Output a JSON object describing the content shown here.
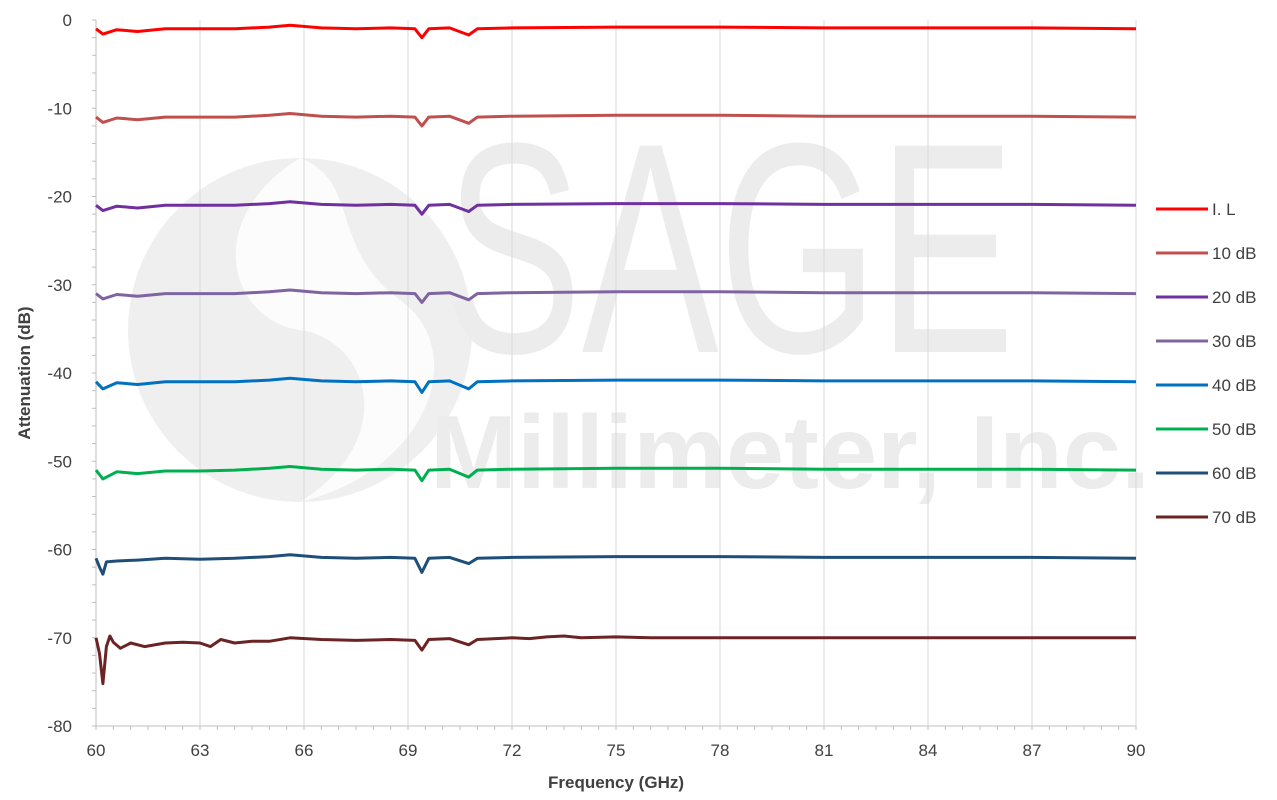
{
  "watermark": {
    "brand": "SAGE",
    "company": "Millimeter, Inc."
  },
  "chart_data": {
    "type": "line",
    "title": "",
    "xlabel": "Frequency (GHz)",
    "ylabel": "Attenuation (dB)",
    "xlim": [
      60,
      90
    ],
    "ylim": [
      -80,
      0
    ],
    "xticks": [
      "60",
      "63",
      "66",
      "69",
      "72",
      "75",
      "78",
      "81",
      "84",
      "87",
      "90"
    ],
    "yticks": [
      "0",
      "-10",
      "-20",
      "-30",
      "-40",
      "-50",
      "-60",
      "-70",
      "-80"
    ],
    "grid": "vertical",
    "legend_position": "right",
    "series": [
      {
        "name": "I. L",
        "color": "#ff0000",
        "x": [
          60,
          60.2,
          60.6,
          61.2,
          62,
          63,
          64,
          65,
          65.6,
          66.5,
          67.5,
          68.5,
          69.2,
          69.4,
          69.6,
          70.2,
          70.75,
          71,
          72,
          75,
          78,
          81,
          84,
          87,
          90
        ],
        "y": [
          -1.0,
          -1.6,
          -1.1,
          -1.3,
          -1.0,
          -1.0,
          -1.0,
          -0.8,
          -0.6,
          -0.9,
          -1.0,
          -0.9,
          -1.0,
          -2.0,
          -1.0,
          -0.9,
          -1.7,
          -1.0,
          -0.9,
          -0.8,
          -0.8,
          -0.9,
          -0.9,
          -0.9,
          -1.0
        ]
      },
      {
        "name": "10 dB",
        "color": "#c0504d",
        "x": [
          60,
          60.2,
          60.6,
          61.2,
          62,
          63,
          64,
          65,
          65.6,
          66.5,
          67.5,
          68.5,
          69.2,
          69.4,
          69.6,
          70.2,
          70.75,
          71,
          72,
          75,
          78,
          81,
          84,
          87,
          90
        ],
        "y": [
          -11.0,
          -11.6,
          -11.1,
          -11.3,
          -11.0,
          -11.0,
          -11.0,
          -10.8,
          -10.6,
          -10.9,
          -11.0,
          -10.9,
          -11.0,
          -12.0,
          -11.0,
          -10.9,
          -11.7,
          -11.0,
          -10.9,
          -10.8,
          -10.8,
          -10.9,
          -10.9,
          -10.9,
          -11.0
        ]
      },
      {
        "name": "20 dB",
        "color": "#7030a0",
        "x": [
          60,
          60.2,
          60.6,
          61.2,
          62,
          63,
          64,
          65,
          65.6,
          66.5,
          67.5,
          68.5,
          69.2,
          69.4,
          69.6,
          70.2,
          70.75,
          71,
          72,
          75,
          78,
          81,
          84,
          87,
          90
        ],
        "y": [
          -21.0,
          -21.6,
          -21.1,
          -21.3,
          -21.0,
          -21.0,
          -21.0,
          -20.8,
          -20.6,
          -20.9,
          -21.0,
          -20.9,
          -21.0,
          -22.0,
          -21.0,
          -20.9,
          -21.7,
          -21.0,
          -20.9,
          -20.8,
          -20.8,
          -20.9,
          -20.9,
          -20.9,
          -21.0
        ]
      },
      {
        "name": "30 dB",
        "color": "#8064a2",
        "x": [
          60,
          60.2,
          60.6,
          61.2,
          62,
          63,
          64,
          65,
          65.6,
          66.5,
          67.5,
          68.5,
          69.2,
          69.4,
          69.6,
          70.2,
          70.75,
          71,
          72,
          75,
          78,
          81,
          84,
          87,
          90
        ],
        "y": [
          -31.0,
          -31.6,
          -31.1,
          -31.3,
          -31.0,
          -31.0,
          -31.0,
          -30.8,
          -30.6,
          -30.9,
          -31.0,
          -30.9,
          -31.0,
          -32.0,
          -31.0,
          -30.9,
          -31.7,
          -31.0,
          -30.9,
          -30.8,
          -30.8,
          -30.9,
          -30.9,
          -30.9,
          -31.0
        ]
      },
      {
        "name": "40 dB",
        "color": "#0070c0",
        "x": [
          60,
          60.2,
          60.6,
          61.2,
          62,
          63,
          64,
          65,
          65.6,
          66.5,
          67.5,
          68.5,
          69.2,
          69.4,
          69.6,
          70.2,
          70.75,
          71,
          72,
          75,
          78,
          81,
          84,
          87,
          90
        ],
        "y": [
          -41.0,
          -41.8,
          -41.1,
          -41.3,
          -41.0,
          -41.0,
          -41.0,
          -40.8,
          -40.6,
          -40.9,
          -41.0,
          -40.9,
          -41.0,
          -42.2,
          -41.0,
          -40.9,
          -41.8,
          -41.0,
          -40.9,
          -40.8,
          -40.8,
          -40.9,
          -40.9,
          -40.9,
          -41.0
        ]
      },
      {
        "name": "50 dB",
        "color": "#00b050",
        "x": [
          60,
          60.2,
          60.6,
          61.2,
          62,
          63,
          64,
          65,
          65.6,
          66.5,
          67.5,
          68.5,
          69.2,
          69.4,
          69.6,
          70.2,
          70.75,
          71,
          72,
          75,
          78,
          81,
          84,
          87,
          90
        ],
        "y": [
          -51.0,
          -52.0,
          -51.2,
          -51.4,
          -51.1,
          -51.1,
          -51.0,
          -50.8,
          -50.6,
          -50.9,
          -51.0,
          -50.9,
          -51.0,
          -52.2,
          -51.0,
          -50.9,
          -51.8,
          -51.0,
          -50.9,
          -50.8,
          -50.8,
          -50.9,
          -50.9,
          -50.9,
          -51.0
        ]
      },
      {
        "name": "60 dB",
        "color": "#1f4e79",
        "x": [
          60,
          60.1,
          60.2,
          60.3,
          60.6,
          61.2,
          62,
          63,
          64,
          65,
          65.6,
          66.5,
          67.5,
          68.5,
          69.2,
          69.4,
          69.6,
          70.2,
          70.75,
          71,
          72,
          75,
          78,
          81,
          84,
          87,
          90
        ],
        "y": [
          -61.0,
          -62.0,
          -62.8,
          -61.4,
          -61.3,
          -61.2,
          -61.0,
          -61.1,
          -61.0,
          -60.8,
          -60.6,
          -60.9,
          -61.0,
          -60.9,
          -61.0,
          -62.6,
          -61.0,
          -60.9,
          -61.6,
          -61.0,
          -60.9,
          -60.8,
          -60.8,
          -60.9,
          -60.9,
          -60.9,
          -61.0
        ]
      },
      {
        "name": "70 dB",
        "color": "#6b2323",
        "x": [
          60,
          60.1,
          60.2,
          60.3,
          60.4,
          60.5,
          60.7,
          61.0,
          61.4,
          62,
          62.5,
          63,
          63.3,
          63.6,
          64,
          64.5,
          65,
          65.6,
          66.5,
          67.5,
          68.5,
          69.2,
          69.4,
          69.6,
          70.2,
          70.75,
          71,
          72,
          72.5,
          73,
          73.5,
          74,
          75,
          76,
          78,
          81,
          84,
          87,
          90
        ],
        "y": [
          -70.0,
          -71.8,
          -75.2,
          -71.0,
          -69.8,
          -70.5,
          -71.2,
          -70.6,
          -71.0,
          -70.6,
          -70.5,
          -70.6,
          -71.0,
          -70.2,
          -70.6,
          -70.4,
          -70.4,
          -70.0,
          -70.2,
          -70.3,
          -70.2,
          -70.3,
          -71.4,
          -70.2,
          -70.1,
          -70.8,
          -70.2,
          -70.0,
          -70.1,
          -69.9,
          -69.8,
          -70.0,
          -69.9,
          -70.0,
          -70.0,
          -70.0,
          -70.0,
          -70.0,
          -70.0
        ]
      }
    ]
  }
}
